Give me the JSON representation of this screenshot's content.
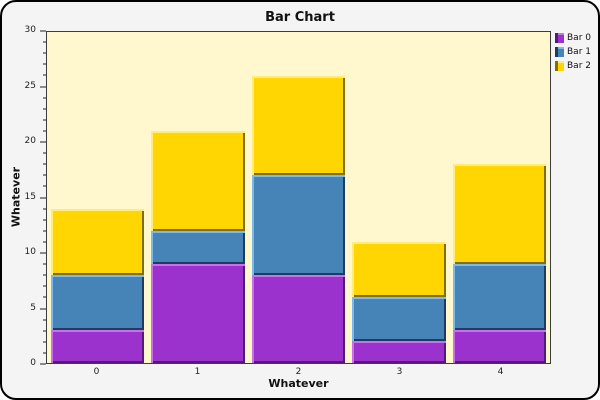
{
  "window": {
    "background": "#F4F4F4",
    "frame_border": "#000000"
  },
  "chart_data": {
    "type": "bar",
    "stacked": true,
    "title": "Bar Chart",
    "xlabel": "Whatever",
    "ylabel": "Whatever",
    "categories": [
      "0",
      "1",
      "2",
      "3",
      "4"
    ],
    "series": [
      {
        "name": "Bar 0",
        "values": [
          3,
          9,
          8,
          2,
          3
        ],
        "color": "#9B32CD",
        "highlight": "#C773E8",
        "shadow": "#551A78"
      },
      {
        "name": "Bar 1",
        "values": [
          5,
          3,
          9,
          4,
          6
        ],
        "color": "#4683B7",
        "highlight": "#7EB9EC",
        "shadow": "#1E3C63"
      },
      {
        "name": "Bar 2",
        "values": [
          6,
          9,
          9,
          5,
          9
        ],
        "color": "#FFD502",
        "highlight": "#FFEC7D",
        "shadow": "#836F00"
      }
    ],
    "stack_totals": [
      14,
      21,
      26,
      11,
      18
    ],
    "ylim": [
      0,
      30
    ],
    "y_major_step": 5,
    "y_minor_step": 1,
    "y_tick_labels": [
      "0",
      "5",
      "10",
      "15",
      "20",
      "25",
      "30"
    ],
    "plot_background": "#FFF8CE",
    "legend_position": "top-right",
    "legend_labels": [
      "Bar 0",
      "Bar 1",
      "Bar 2"
    ],
    "grid": false
  }
}
